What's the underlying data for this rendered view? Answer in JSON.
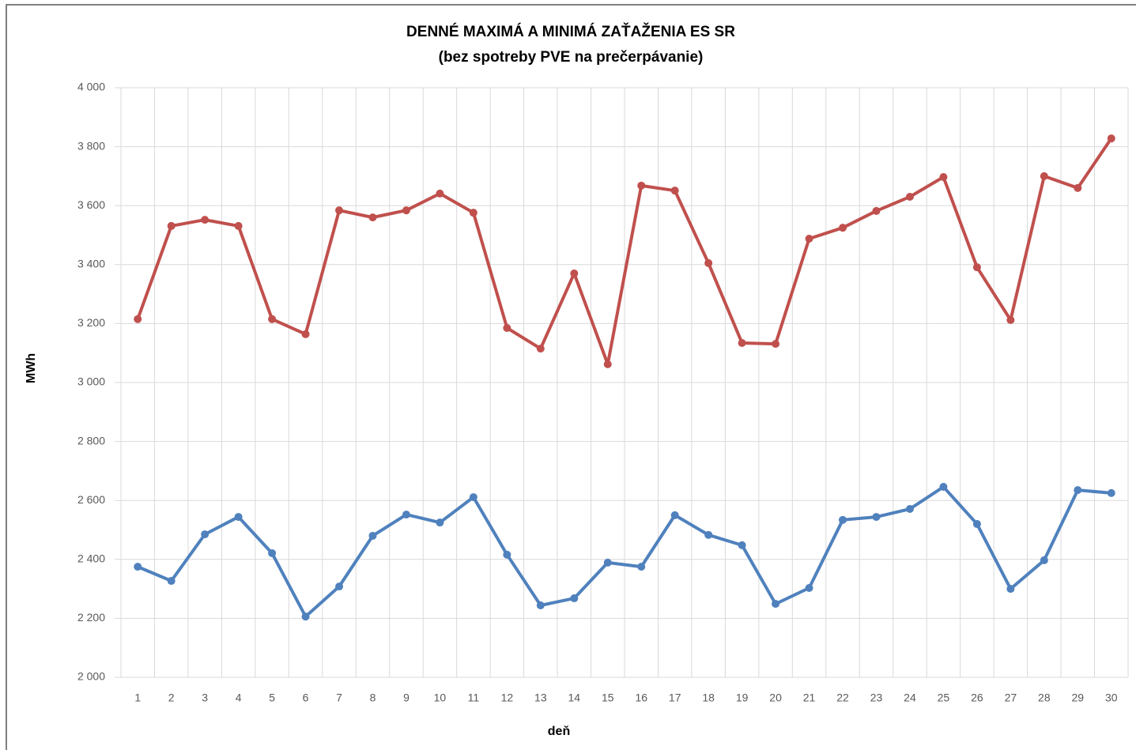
{
  "chart_data": {
    "type": "line",
    "title": "DENNÉ MAXIMÁ A MINIMÁ ZAŤAŽENIA ES SR",
    "subtitle": "(bez spotreby PVE na prečerpávanie)",
    "x_label": "deň",
    "y_label": "MWh",
    "categories": [
      "1",
      "2",
      "3",
      "4",
      "5",
      "6",
      "7",
      "8",
      "9",
      "10",
      "11",
      "12",
      "13",
      "14",
      "15",
      "16",
      "17",
      "18",
      "19",
      "20",
      "21",
      "22",
      "23",
      "24",
      "25",
      "26",
      "27",
      "28",
      "29",
      "30"
    ],
    "series": [
      {
        "color": "#c0504d",
        "values": [
          3215,
          3531,
          3552,
          3531,
          3215,
          3164,
          3584,
          3560,
          3584,
          3641,
          3576,
          3185,
          3115,
          3370,
          3062,
          3668,
          3651,
          3405,
          3134,
          3131,
          3488,
          3525,
          3582,
          3630,
          3697,
          3391,
          3212,
          3700,
          3660,
          3828
        ]
      },
      {
        "color": "#4f81bd",
        "values": [
          2375,
          2327,
          2485,
          2544,
          2421,
          2206,
          2308,
          2480,
          2552,
          2525,
          2611,
          2416,
          2244,
          2268,
          2389,
          2375,
          2550,
          2483,
          2448,
          2249,
          2303,
          2534,
          2544,
          2571,
          2646,
          2520,
          2300,
          2397,
          2635,
          2625
        ]
      }
    ],
    "ylim": [
      2000,
      4000
    ],
    "yticks": [
      {
        "value": 2000,
        "label": "2 000"
      },
      {
        "value": 2200,
        "label": "2 200"
      },
      {
        "value": 2400,
        "label": "2 400"
      },
      {
        "value": 2600,
        "label": "2 600"
      },
      {
        "value": 2800,
        "label": "2 800"
      },
      {
        "value": 3000,
        "label": "3 000"
      },
      {
        "value": 3200,
        "label": "3 200"
      },
      {
        "value": 3400,
        "label": "3 400"
      },
      {
        "value": 3600,
        "label": "3 600"
      },
      {
        "value": 3800,
        "label": "3 800"
      },
      {
        "value": 4000,
        "label": "4 000"
      }
    ],
    "grid": true
  }
}
